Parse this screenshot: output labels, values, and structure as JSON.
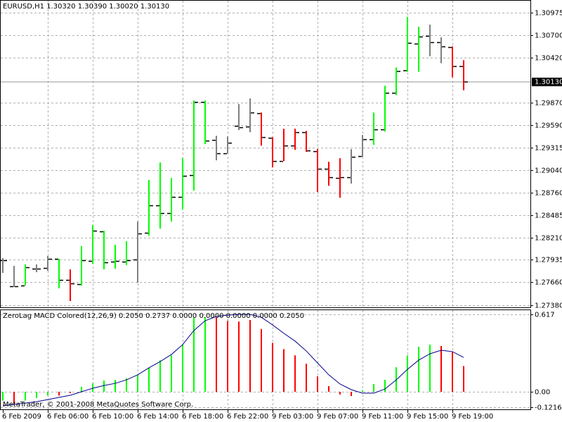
{
  "chart_data": [
    {
      "type": "ohlc",
      "title": "EURUSD,H1  1.30320 1.30390 1.30020 1.30130",
      "categories": [
        "6 Feb 2009",
        null,
        null,
        null,
        "6 Feb 06:00",
        null,
        null,
        null,
        "6 Feb 10:00",
        null,
        null,
        null,
        "6 Feb 14:00",
        null,
        null,
        null,
        "6 Feb 18:00",
        null,
        null,
        null,
        "6 Feb 22:00",
        null,
        null,
        null,
        "9 Feb 03:00",
        null,
        null,
        null,
        "9 Feb 07:00",
        null,
        null,
        null,
        "9 Feb 11:00",
        null,
        null,
        null,
        "9 Feb 15:00",
        null,
        null,
        null,
        "9 Feb 19:00",
        null
      ],
      "open": [
        1.2793,
        1.27609,
        1.27618,
        1.27826,
        1.27834,
        1.27947,
        1.27687,
        1.27635,
        1.27921,
        1.28285,
        1.27912,
        1.27912,
        1.27938,
        1.28267,
        1.28604,
        1.28509,
        1.28708,
        1.28976,
        1.29876,
        1.29409,
        1.29244,
        1.29582,
        1.29573,
        1.29737,
        1.29435,
        1.29149,
        1.29339,
        1.29504,
        1.2927,
        1.29054,
        1.28942,
        1.2895,
        1.2921,
        1.29417,
        1.29538,
        1.29988,
        1.30265,
        1.30594,
        1.30689,
        1.30611,
        1.3055,
        1.3032
      ],
      "high": [
        1.27955,
        1.2786,
        1.27878,
        1.27878,
        1.27981,
        1.27947,
        1.27817,
        1.28103,
        1.28362,
        1.28293,
        1.2812,
        1.28163,
        1.28405,
        1.28916,
        1.29132,
        1.28942,
        1.29184,
        1.29893,
        1.29893,
        1.29461,
        1.29452,
        1.2985,
        1.29919,
        1.29746,
        1.29443,
        1.29547,
        1.29547,
        1.29521,
        1.29296,
        1.29141,
        1.29184,
        1.29296,
        1.29469,
        1.29746,
        1.30075,
        1.303,
        1.30922,
        1.30801,
        1.30827,
        1.30672,
        1.30559,
        1.3039
      ],
      "low": [
        1.27774,
        1.27601,
        1.27618,
        1.27782,
        1.278,
        1.27584,
        1.27428,
        1.27618,
        1.27886,
        1.27817,
        1.27826,
        1.27869,
        1.27653,
        1.28232,
        1.28319,
        1.28405,
        1.28552,
        1.28786,
        1.29357,
        1.29158,
        1.29244,
        1.2953,
        1.29504,
        1.29339,
        1.29071,
        1.29149,
        1.29288,
        1.29262,
        1.28769,
        1.28846,
        1.28699,
        1.28872,
        1.29201,
        1.29348,
        1.29512,
        1.29962,
        1.30248,
        1.30248,
        1.30438,
        1.30352,
        1.30179,
        1.3002
      ],
      "close": [
        1.2793,
        1.27609,
        1.27843,
        1.27826,
        1.27947,
        1.27687,
        1.27644,
        1.2793,
        1.28293,
        1.27904,
        1.27921,
        1.2793,
        1.28258,
        1.28604,
        1.28509,
        1.28708,
        1.28968,
        1.29876,
        1.294,
        1.29244,
        1.29374,
        1.29564,
        1.29746,
        1.29443,
        1.29149,
        1.29339,
        1.29504,
        1.29279,
        1.29054,
        1.2895,
        1.2895,
        1.29201,
        1.29417,
        1.29538,
        1.29988,
        1.30256,
        1.30602,
        1.3068,
        1.30611,
        1.30559,
        1.3032,
        1.3013
      ],
      "colors": [
        "#808080",
        "#808080",
        "#00ff00",
        "#808080",
        "#808080",
        "#00ff00",
        "#ff0000",
        "#00ff00",
        "#00ff00",
        "#00ff00",
        "#00ff00",
        "#00ff00",
        "#808080",
        "#00ff00",
        "#00ff00",
        "#00ff00",
        "#00ff00",
        "#00ff00",
        "#00ff00",
        "#808080",
        "#808080",
        "#808080",
        "#808080",
        "#ff0000",
        "#ff0000",
        "#ff0000",
        "#ff0000",
        "#ff0000",
        "#ff0000",
        "#ff0000",
        "#ff0000",
        "#808080",
        "#808080",
        "#00ff00",
        "#00ff00",
        "#00ff00",
        "#00ff00",
        "#00ff00",
        "#808080",
        "#808080",
        "#ff0000",
        "#ff0000"
      ],
      "tick_color": "#000000",
      "ylim": [
        1.2735,
        1.3113
      ],
      "yticks": [
        1.30975,
        {
          "value": 1.307,
          "label": "1.30700"
        },
        {
          "value": 1.3042,
          "label": "1.30420"
        },
        {
          "value": 1.2987,
          "label": "1.29870"
        },
        {
          "value": 1.2959,
          "label": "1.29590"
        },
        1.29315,
        {
          "value": 1.2904,
          "label": "1.29040"
        },
        {
          "value": 1.2876,
          "label": "1.28760"
        },
        1.28485,
        {
          "value": 1.2821,
          "label": "1.28210"
        },
        1.27935,
        {
          "value": 1.2766,
          "label": "1.27660"
        },
        {
          "value": 1.2738,
          "label": "1.27380"
        }
      ],
      "current_price": {
        "value": 1.3013,
        "label": "1.30130"
      },
      "grid": true
    },
    {
      "type": "macd",
      "title": "ZeroLag MACD Colored(12,26,9) 0.2050 0.2737 0.0000 0.0000 0.0000 0.0000 0.2050",
      "values": [
        -0.07,
        -0.1,
        -0.07,
        -0.05,
        -0.03,
        -0.03,
        -0.01,
        0.04,
        0.067,
        0.09,
        0.095,
        0.107,
        0.135,
        0.19,
        0.25,
        0.29,
        0.376,
        0.589,
        0.594,
        0.589,
        0.566,
        0.56,
        0.572,
        0.5,
        0.39,
        0.34,
        0.29,
        0.224,
        0.123,
        0.045,
        -0.022,
        -0.034,
        0.011,
        0.062,
        0.095,
        0.196,
        0.29,
        0.359,
        0.376,
        0.365,
        0.32,
        0.205
      ],
      "colors": [
        "#00ff00",
        "#ff0000",
        "#00ff00",
        "#00ff00",
        "#00ff00",
        "#ff0000",
        "#ff0000",
        "#00ff00",
        "#00ff00",
        "#00ff00",
        "#00ff00",
        "#00ff00",
        "#00ff00",
        "#00ff00",
        "#00ff00",
        "#00ff00",
        "#00ff00",
        "#00ff00",
        "#00ff00",
        "#ff0000",
        "#ff0000",
        "#ff0000",
        "#ff0000",
        "#ff0000",
        "#ff0000",
        "#ff0000",
        "#ff0000",
        "#ff0000",
        "#ff0000",
        "#ff0000",
        "#ff0000",
        "#ff0000",
        "#00ff00",
        "#00ff00",
        "#00ff00",
        "#00ff00",
        "#00ff00",
        "#00ff00",
        "#00ff00",
        "#ff0000",
        "#ff0000",
        "#ff0000"
      ],
      "signal": [
        -0.112,
        -0.101,
        -0.09,
        -0.079,
        -0.062,
        -0.045,
        -0.028,
        0.0,
        0.028,
        0.05,
        0.067,
        0.095,
        0.135,
        0.191,
        0.241,
        0.297,
        0.376,
        0.488,
        0.566,
        0.6,
        0.611,
        0.617,
        0.617,
        0.594,
        0.533,
        0.466,
        0.404,
        0.325,
        0.23,
        0.135,
        0.062,
        0.017,
        -0.011,
        -0.011,
        0.022,
        0.095,
        0.179,
        0.252,
        0.303,
        0.331,
        0.32,
        0.2737
      ],
      "signal_color": "#00008b",
      "ylim": [
        -0.14,
        0.656
      ],
      "yticks": [
        0.617,
        {
          "value": 0,
          "label": "0.00"
        },
        -0.1216
      ],
      "grid": true
    }
  ],
  "footer": "MetaTrader, © 2001-2008 MetaQuotes Software Corp."
}
